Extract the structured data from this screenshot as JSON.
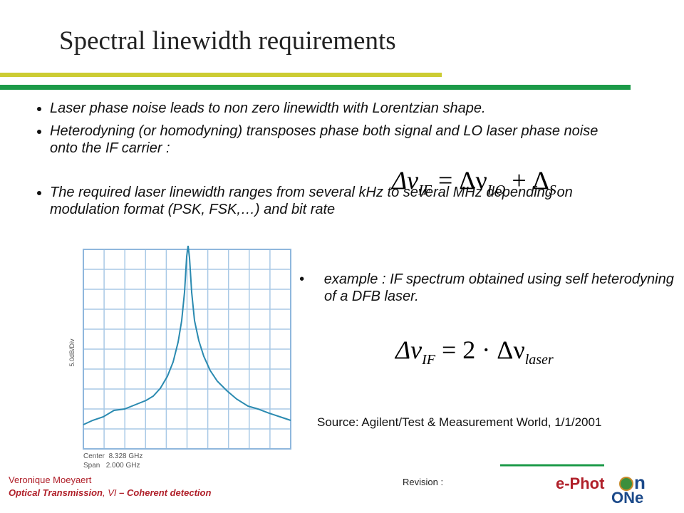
{
  "title": "Spectral linewidth requirements",
  "bullets": [
    "Laser phase noise leads to non zero linewidth with Lorentzian shape.",
    "Heterodyning (or homodyning) transposes phase both signal and LO laser phase noise onto the IF carrier :",
    "The required laser linewidth ranges from several kHz to several MHz depending on modulation format (PSK, FSK,…) and bit rate"
  ],
  "formula1": {
    "a": "Δν",
    "a_sub": "IF",
    "b": "= Δν",
    "b_sub": "LO",
    "c": "+ Δ",
    "c_sub": "S"
  },
  "example": "example : IF spectrum obtained using self heterodyning of a DFB laser.",
  "formula2": {
    "a": "Δν",
    "a_sub": "IF",
    "b": "= 2 · Δν",
    "b_sub": "laser"
  },
  "plot": {
    "ylabel": "5.0dB/Div",
    "center": "Center  8.328 GHz",
    "span": "Span   2.000 GHz"
  },
  "source": "Source: Agilent/Test & Measurement World, 1/1/2001",
  "footer": {
    "author": "Veronique Moeyaert",
    "course_a": "Optical Transmission",
    "course_b": ", VI",
    "course_c": " – Coherent detection",
    "revision": "Revision :"
  },
  "logo": {
    "a": "e-Phot",
    "b": "n",
    "c": "ONe"
  }
}
